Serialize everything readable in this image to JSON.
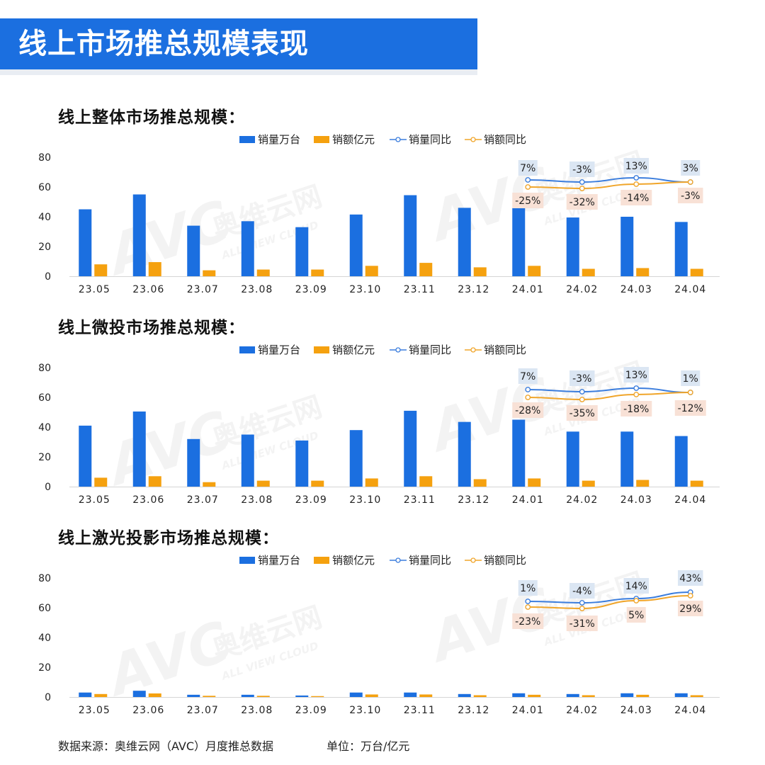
{
  "header": {
    "title": "线上市场推总规模表现"
  },
  "legend": {
    "volume": "销量万台",
    "amount": "销额亿元",
    "volume_yoy": "销量同比",
    "amount_yoy": "销额同比"
  },
  "watermark": {
    "brand": "AVC",
    "cn": "奥维云网",
    "en": "ALL VIEW CLOUD"
  },
  "colors": {
    "header": "#1b6fe0",
    "volume_bar": "#1b6fe0",
    "amount_bar": "#f5a10f",
    "volume_line": "#3b7ddd",
    "amount_line": "#f0a52a",
    "volume_label_bg": "#dbe6f3",
    "amount_label_bg": "#f8e1d6"
  },
  "chart_data": [
    {
      "type": "bar",
      "title": "线上整体市场推总规模：",
      "categories": [
        "23.05",
        "23.06",
        "23.07",
        "23.08",
        "23.09",
        "23.10",
        "23.11",
        "23.12",
        "24.01",
        "24.02",
        "24.03",
        "24.04"
      ],
      "ylim": [
        0,
        80
      ],
      "yticks": [
        0,
        20,
        40,
        60,
        80
      ],
      "series": [
        {
          "name": "销量万台",
          "values": [
            45,
            55,
            34,
            37,
            33,
            41.5,
            54.5,
            46,
            46,
            39.5,
            40,
            36.5
          ]
        },
        {
          "name": "销额亿元",
          "values": [
            8,
            9.5,
            4,
            4.5,
            4.5,
            7,
            9,
            6,
            7,
            5,
            5.5,
            5
          ]
        }
      ],
      "yoy": {
        "categories": [
          "24.01",
          "24.02",
          "24.03",
          "24.04"
        ],
        "series": [
          {
            "name": "销量同比",
            "labels": [
              "7%",
              "-3%",
              "13%",
              "3%"
            ],
            "values": [
              7,
              -3,
              13,
              3
            ]
          },
          {
            "name": "销额同比",
            "labels": [
              "-25%",
              "-32%",
              "-14%",
              "-3%"
            ],
            "values": [
              -25,
              -32,
              -14,
              -3
            ]
          }
        ]
      }
    },
    {
      "type": "bar",
      "title": "线上微投市场推总规模：",
      "categories": [
        "23.05",
        "23.06",
        "23.07",
        "23.08",
        "23.09",
        "23.10",
        "23.11",
        "23.12",
        "24.01",
        "24.02",
        "24.03",
        "24.04"
      ],
      "ylim": [
        0,
        80
      ],
      "yticks": [
        0,
        20,
        40,
        60,
        80
      ],
      "series": [
        {
          "name": "销量万台",
          "values": [
            41,
            50.5,
            32,
            35,
            31,
            38,
            51,
            43.5,
            45,
            37,
            37,
            34
          ]
        },
        {
          "name": "销额亿元",
          "values": [
            6,
            7,
            3,
            4,
            4,
            5.5,
            7,
            5,
            5.5,
            4,
            4.5,
            4
          ]
        }
      ],
      "yoy": {
        "categories": [
          "24.01",
          "24.02",
          "24.03",
          "24.04"
        ],
        "series": [
          {
            "name": "销量同比",
            "labels": [
              "7%",
              "-3%",
              "13%",
              "1%"
            ],
            "values": [
              7,
              -3,
              13,
              1
            ]
          },
          {
            "name": "销额同比",
            "labels": [
              "-28%",
              "-35%",
              "-18%",
              "-12%"
            ],
            "values": [
              -28,
              -35,
              -18,
              -12
            ]
          }
        ]
      }
    },
    {
      "type": "bar",
      "title": "线上激光投影市场推总规模：",
      "categories": [
        "23.05",
        "23.06",
        "23.07",
        "23.08",
        "23.09",
        "23.10",
        "23.11",
        "23.12",
        "24.01",
        "24.02",
        "24.03",
        "24.04"
      ],
      "ylim": [
        0,
        80
      ],
      "yticks": [
        0,
        20,
        40,
        60,
        80
      ],
      "series": [
        {
          "name": "销量万台",
          "values": [
            3,
            4.2,
            1.5,
            1.5,
            1,
            3,
            3,
            2,
            2.5,
            2,
            2.5,
            2.5
          ]
        },
        {
          "name": "销额亿元",
          "values": [
            2,
            2.4,
            0.8,
            0.8,
            0.6,
            1.7,
            1.7,
            1.2,
            1.5,
            1.2,
            1.5,
            1.2
          ]
        }
      ],
      "yoy": {
        "categories": [
          "24.01",
          "24.02",
          "24.03",
          "24.04"
        ],
        "series": [
          {
            "name": "销量同比",
            "labels": [
              "1%",
              "-4%",
              "14%",
              "43%"
            ],
            "values": [
              1,
              -4,
              14,
              43
            ]
          },
          {
            "name": "销额同比",
            "labels": [
              "-23%",
              "-31%",
              "5%",
              "29%"
            ],
            "values": [
              -23,
              -31,
              5,
              29
            ]
          }
        ]
      }
    }
  ],
  "footer": {
    "source": "数据来源：奥维云网（AVC）月度推总数据",
    "unit": "单位：万台/亿元"
  }
}
